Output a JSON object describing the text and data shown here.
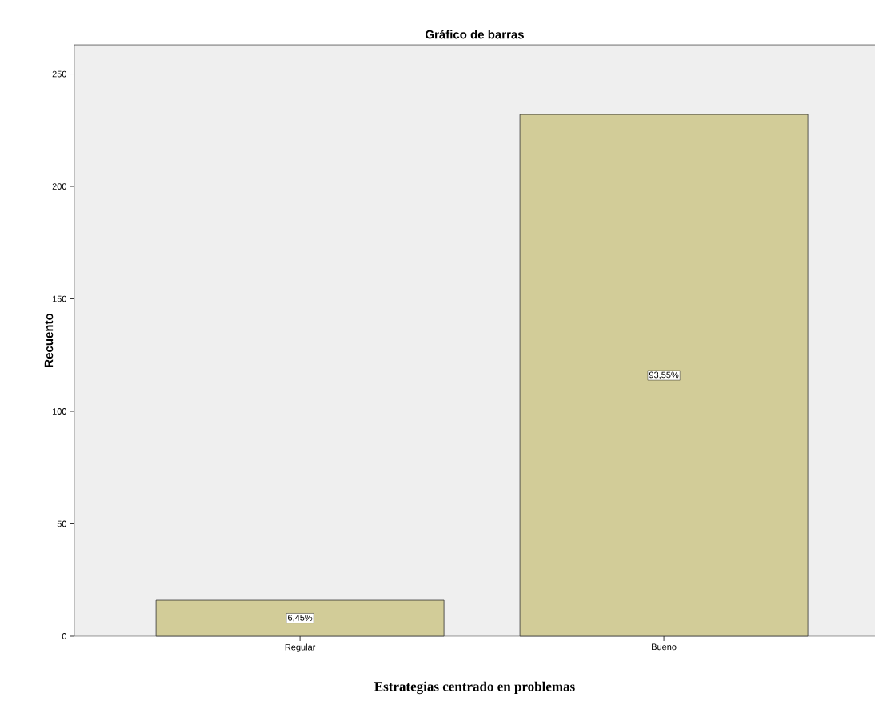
{
  "chart_data": {
    "type": "bar",
    "title": "Gráfico de barras",
    "xlabel": "Estrategias centrado en problemas",
    "ylabel": "Recuento",
    "categories": [
      "Regular",
      "Bueno"
    ],
    "values": [
      16,
      232
    ],
    "annotations": [
      "6,45%",
      "93,55%"
    ],
    "color": "#d2cc98",
    "ylim": [
      0,
      263
    ],
    "yticks": [
      0,
      50,
      100,
      150,
      200,
      250
    ],
    "grid": false
  }
}
